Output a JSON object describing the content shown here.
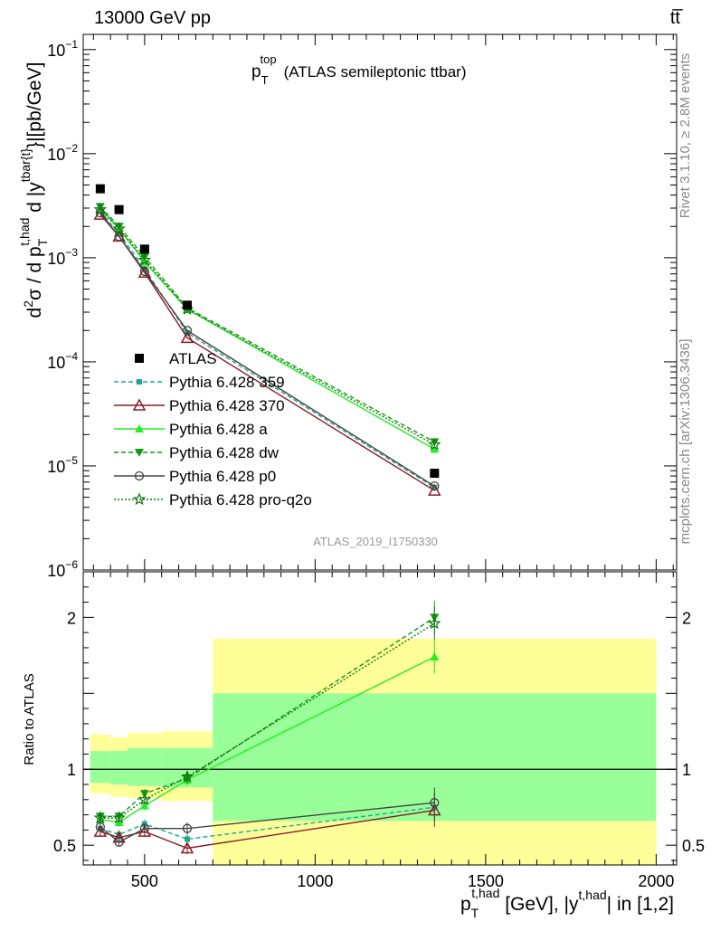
{
  "header": {
    "left": "13000 GeV pp",
    "right": "tt̅"
  },
  "side": {
    "rivet": "Rivet 3.1.10, ≥ 2.8M events",
    "mcplots": "mcplots.cern.ch [arXiv:1306.3436]"
  },
  "watermark": "ATLAS_2019_I1750330",
  "title": {
    "main": "p",
    "sup": "top",
    "sub": "T",
    "rest": "(ATLAS semileptonic ttbar)"
  },
  "ylabel_top": {
    "d2": "d",
    "two": "2",
    "sigma": "σ / d p",
    "sub1": "T",
    "sup1": "t,had",
    "rest": " d |y",
    "sup2": "tbar{t}",
    "unit": "}|[pb/GeV]"
  },
  "ylabel_bottom": "Ratio to ATLAS",
  "xlabel": {
    "p": "p",
    "sub": "T",
    "sup": "t,had",
    "mid": " [GeV], |y",
    "sup2": "t,had",
    "end": "| in [1,2]"
  },
  "colors": {
    "data": "#000000",
    "p359": "#1aa88e",
    "p370": "#8b1a2a",
    "pa": "#22ee22",
    "pdw": "#119911",
    "pp0": "#444444",
    "pq2o": "#117711",
    "band_yellow": "#ffff99",
    "band_green": "#99ff99"
  },
  "chart_data": {
    "type": "line",
    "x_bins": [
      [
        340,
        400
      ],
      [
        400,
        450
      ],
      [
        450,
        550
      ],
      [
        550,
        700
      ],
      [
        700,
        2000
      ]
    ],
    "x": [
      370,
      425,
      500,
      625,
      1350
    ],
    "xlim": [
      320,
      2060
    ],
    "xticks": [
      500,
      1000,
      1500,
      2000
    ],
    "main": {
      "yscale": "log",
      "ylim": [
        1e-06,
        0.14
      ],
      "yticks": [
        {
          "v": 1e-06,
          "b": "10",
          "e": "−6"
        },
        {
          "v": 1e-05,
          "b": "10",
          "e": "−5"
        },
        {
          "v": 0.0001,
          "b": "10",
          "e": "−4"
        },
        {
          "v": 0.001,
          "b": "10",
          "e": "−3"
        },
        {
          "v": 0.01,
          "b": "10",
          "e": "−2"
        },
        {
          "v": 0.1,
          "b": "10",
          "e": "−1"
        }
      ],
      "data": {
        "name": "ATLAS",
        "values": [
          0.0046,
          0.0029,
          0.00121,
          0.00035,
          8.5e-06
        ]
      },
      "series": [
        {
          "name": "Pythia 6.428 359",
          "key": "p359",
          "values": [
            0.0028,
            0.0017,
            0.00078,
            0.00019,
            6.2e-06
          ],
          "dash": "5,3",
          "marker": "square-small",
          "ratio": [
            0.61,
            0.57,
            0.64,
            0.54,
            0.75
          ],
          "rerr": [
            0.03,
            0.03,
            0.03,
            0.03,
            0.1
          ]
        },
        {
          "name": "Pythia 6.428 370",
          "key": "p370",
          "values": [
            0.0026,
            0.0016,
            0.00072,
            0.00017,
            5.8e-06
          ],
          "dash": "",
          "marker": "triangle-open",
          "ratio": [
            0.59,
            0.55,
            0.59,
            0.48,
            0.73
          ],
          "rerr": [
            0.03,
            0.03,
            0.03,
            0.04,
            0.11
          ]
        },
        {
          "name": "Pythia 6.428 a",
          "key": "pa",
          "values": [
            0.003,
            0.0019,
            0.00091,
            0.00032,
            1.45e-05
          ],
          "dash": "",
          "marker": "triangle-filled",
          "ratio": [
            0.67,
            0.65,
            0.76,
            0.93,
            1.74
          ],
          "rerr": [
            0.03,
            0.03,
            0.03,
            0.04,
            0.11
          ]
        },
        {
          "name": "Pythia 6.428 dw",
          "key": "pdw",
          "values": [
            0.0031,
            0.002,
            0.00102,
            0.00033,
            1.7e-05
          ],
          "dash": "5,3",
          "marker": "triangle-down",
          "ratio": [
            0.69,
            0.69,
            0.84,
            0.94,
            2.0
          ],
          "rerr": [
            0.03,
            0.03,
            0.03,
            0.04,
            0.11
          ]
        },
        {
          "name": "Pythia 6.428 p0",
          "key": "pp0",
          "values": [
            0.0027,
            0.0016,
            0.00074,
            0.0002,
            6.4e-06
          ],
          "dash": "",
          "marker": "circle-open",
          "ratio": [
            0.62,
            0.52,
            0.61,
            0.61,
            0.78
          ],
          "rerr": [
            0.03,
            0.03,
            0.03,
            0.04,
            0.1
          ]
        },
        {
          "name": "Pythia 6.428 pro-q2o",
          "key": "pq2o",
          "values": [
            0.0029,
            0.0019,
            0.00095,
            0.00032,
            1.6e-05
          ],
          "dash": "2,2",
          "marker": "star-open",
          "ratio": [
            0.68,
            0.68,
            0.8,
            0.95,
            1.96
          ],
          "rerr": [
            0.03,
            0.03,
            0.03,
            0.04,
            0.11
          ]
        }
      ]
    },
    "ratio": {
      "ylim": [
        0.37,
        2.3
      ],
      "yticks": [
        0.5,
        1,
        2
      ],
      "band_yellow": [
        [
          0.84,
          1.23
        ],
        [
          0.82,
          1.21
        ],
        [
          0.81,
          1.24
        ],
        [
          0.79,
          1.25
        ],
        [
          0.37,
          1.86
        ]
      ],
      "band_green": [
        [
          0.91,
          1.12
        ],
        [
          0.9,
          1.12
        ],
        [
          0.89,
          1.14
        ],
        [
          0.88,
          1.14
        ],
        [
          0.66,
          1.5
        ]
      ]
    }
  }
}
